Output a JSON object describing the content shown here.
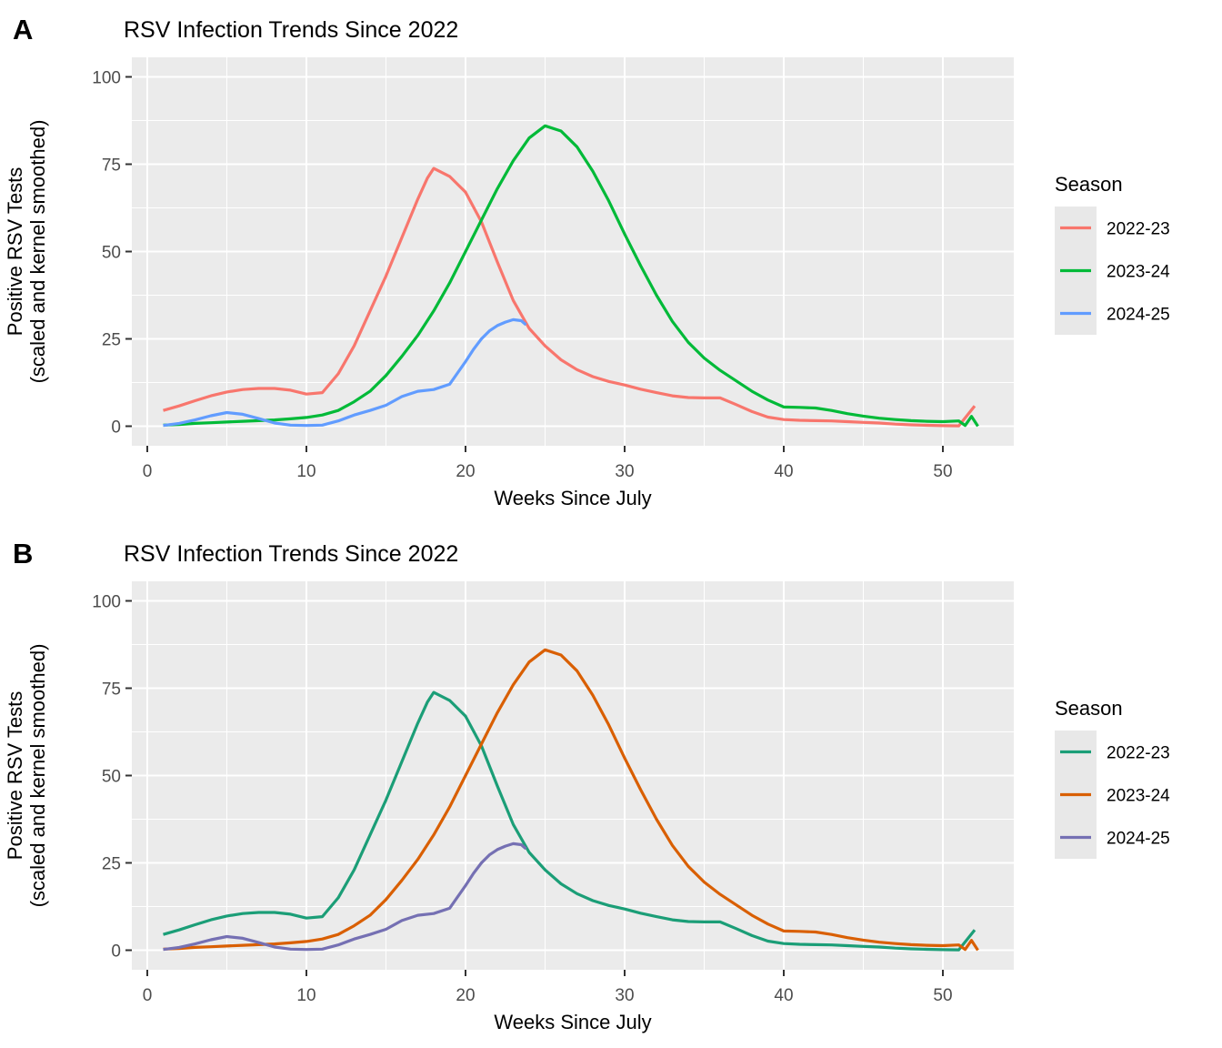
{
  "figure": {
    "background": "#ffffff",
    "panel_background": "#ebebeb",
    "grid_color": "#ffffff",
    "tick_color": "#333333",
    "tick_label_color": "#4d4d4d",
    "panel_labels": [
      "A",
      "B"
    ]
  },
  "chart_data": [
    {
      "type": "line",
      "panel": "A",
      "title": "RSV Infection Trends Since 2022",
      "xlabel": "Weeks Since July",
      "ylabel_line1": "Positive RSV Tests",
      "ylabel_line2": "(scaled and kernel smoothed)",
      "xticks": [
        0,
        10,
        20,
        30,
        40,
        50
      ],
      "yticks": [
        0,
        25,
        50,
        75,
        100
      ],
      "xticks_minor": [
        5,
        15,
        25,
        35,
        45
      ],
      "yticks_minor": [
        12.5,
        37.5,
        62.5,
        87.5
      ],
      "xlim": [
        -1,
        54.5
      ],
      "ylim": [
        -5.6,
        105.6
      ],
      "grid": true,
      "legend_title": "Season",
      "legend_position": "right",
      "series": [
        {
          "name": "2022-23",
          "color": "#F8766D",
          "x": [
            1,
            2,
            3,
            4,
            5,
            6,
            7,
            8,
            9,
            10,
            11,
            12,
            13,
            14,
            15,
            16,
            17,
            17.6,
            18,
            19,
            20,
            21,
            22,
            23,
            24,
            25,
            26,
            27,
            28,
            29,
            30,
            31,
            32,
            33,
            34,
            35,
            36,
            37,
            38,
            39,
            40,
            41,
            42,
            43,
            44,
            45,
            46,
            47,
            48,
            49,
            50,
            51,
            52
          ],
          "y": [
            4.5,
            5.8,
            7.3,
            8.7,
            9.8,
            10.5,
            10.8,
            10.8,
            10.3,
            9.2,
            9.6,
            15,
            23,
            33,
            43,
            54,
            65,
            71,
            73.8,
            71.5,
            67,
            58.5,
            47,
            36,
            28,
            23,
            19,
            16.2,
            14.2,
            12.8,
            11.8,
            10.6,
            9.6,
            8.7,
            8.2,
            8.1,
            8.1,
            6.2,
            4.2,
            2.6,
            1.9,
            1.7,
            1.6,
            1.5,
            1.3,
            1.1,
            0.9,
            0.6,
            0.4,
            0.25,
            0.15,
            0.1,
            5.8
          ]
        },
        {
          "name": "2023-24",
          "color": "#00BA38",
          "x": [
            1,
            2,
            3,
            4,
            5,
            6,
            7,
            8,
            9,
            10,
            11,
            12,
            13,
            14,
            15,
            16,
            17,
            18,
            19,
            20,
            21,
            22,
            23,
            24,
            25,
            26,
            27,
            28,
            29,
            30,
            31,
            32,
            33,
            34,
            35,
            36,
            37,
            38,
            39,
            40,
            41,
            42,
            43,
            44,
            45,
            46,
            47,
            48,
            49,
            50,
            51,
            51.4,
            51.8,
            52.2
          ],
          "y": [
            0.3,
            0.5,
            0.8,
            1,
            1.2,
            1.4,
            1.6,
            1.8,
            2.1,
            2.5,
            3.2,
            4.5,
            7,
            10,
            14.5,
            20,
            26,
            33,
            41,
            50,
            59,
            68,
            76,
            82.5,
            86,
            84.5,
            80,
            73,
            64.5,
            55,
            46,
            37.5,
            30,
            24,
            19.5,
            16,
            13,
            10,
            7.5,
            5.5,
            5.4,
            5.2,
            4.5,
            3.6,
            2.9,
            2.3,
            1.9,
            1.6,
            1.4,
            1.3,
            1.5,
            0.2,
            2.8,
            0
          ]
        },
        {
          "name": "2024-25",
          "color": "#619CFF",
          "x": [
            1,
            2,
            3,
            4,
            5,
            6,
            7,
            8,
            9,
            10,
            11,
            12,
            13,
            14,
            15,
            16,
            17,
            18,
            19,
            20,
            20.5,
            21,
            21.5,
            22,
            22.5,
            23,
            23.5,
            23.8
          ],
          "y": [
            0.2,
            0.8,
            1.8,
            3,
            3.9,
            3.4,
            2.2,
            0.9,
            0.3,
            0.2,
            0.3,
            1.5,
            3.2,
            4.5,
            6,
            8.5,
            10,
            10.5,
            12,
            18.5,
            22,
            25,
            27.3,
            28.8,
            29.8,
            30.5,
            30.2,
            29
          ]
        }
      ]
    },
    {
      "type": "line",
      "panel": "B",
      "title": "RSV Infection Trends Since 2022",
      "xlabel": "Weeks Since July",
      "ylabel_line1": "Positive RSV Tests",
      "ylabel_line2": "(scaled and kernel smoothed)",
      "xticks": [
        0,
        10,
        20,
        30,
        40,
        50
      ],
      "yticks": [
        0,
        25,
        50,
        75,
        100
      ],
      "xticks_minor": [
        5,
        15,
        25,
        35,
        45
      ],
      "yticks_minor": [
        12.5,
        37.5,
        62.5,
        87.5
      ],
      "xlim": [
        -1,
        54.5
      ],
      "ylim": [
        -5.6,
        105.6
      ],
      "grid": true,
      "legend_title": "Season",
      "legend_position": "right",
      "series": [
        {
          "name": "2022-23",
          "color": "#1B9E77",
          "x": [
            1,
            2,
            3,
            4,
            5,
            6,
            7,
            8,
            9,
            10,
            11,
            12,
            13,
            14,
            15,
            16,
            17,
            17.6,
            18,
            19,
            20,
            21,
            22,
            23,
            24,
            25,
            26,
            27,
            28,
            29,
            30,
            31,
            32,
            33,
            34,
            35,
            36,
            37,
            38,
            39,
            40,
            41,
            42,
            43,
            44,
            45,
            46,
            47,
            48,
            49,
            50,
            51,
            52
          ],
          "y": [
            4.5,
            5.8,
            7.3,
            8.7,
            9.8,
            10.5,
            10.8,
            10.8,
            10.3,
            9.2,
            9.6,
            15,
            23,
            33,
            43,
            54,
            65,
            71,
            73.8,
            71.5,
            67,
            58.5,
            47,
            36,
            28,
            23,
            19,
            16.2,
            14.2,
            12.8,
            11.8,
            10.6,
            9.6,
            8.7,
            8.2,
            8.1,
            8.1,
            6.2,
            4.2,
            2.6,
            1.9,
            1.7,
            1.6,
            1.5,
            1.3,
            1.1,
            0.9,
            0.6,
            0.4,
            0.25,
            0.15,
            0.1,
            5.8
          ]
        },
        {
          "name": "2023-24",
          "color": "#D95F02",
          "x": [
            1,
            2,
            3,
            4,
            5,
            6,
            7,
            8,
            9,
            10,
            11,
            12,
            13,
            14,
            15,
            16,
            17,
            18,
            19,
            20,
            21,
            22,
            23,
            24,
            25,
            26,
            27,
            28,
            29,
            30,
            31,
            32,
            33,
            34,
            35,
            36,
            37,
            38,
            39,
            40,
            41,
            42,
            43,
            44,
            45,
            46,
            47,
            48,
            49,
            50,
            51,
            51.4,
            51.8,
            52.2
          ],
          "y": [
            0.3,
            0.5,
            0.8,
            1,
            1.2,
            1.4,
            1.6,
            1.8,
            2.1,
            2.5,
            3.2,
            4.5,
            7,
            10,
            14.5,
            20,
            26,
            33,
            41,
            50,
            59,
            68,
            76,
            82.5,
            86,
            84.5,
            80,
            73,
            64.5,
            55,
            46,
            37.5,
            30,
            24,
            19.5,
            16,
            13,
            10,
            7.5,
            5.5,
            5.4,
            5.2,
            4.5,
            3.6,
            2.9,
            2.3,
            1.9,
            1.6,
            1.4,
            1.3,
            1.5,
            0.2,
            2.8,
            0
          ]
        },
        {
          "name": "2024-25",
          "color": "#7570B3",
          "x": [
            1,
            2,
            3,
            4,
            5,
            6,
            7,
            8,
            9,
            10,
            11,
            12,
            13,
            14,
            15,
            16,
            17,
            18,
            19,
            20,
            20.5,
            21,
            21.5,
            22,
            22.5,
            23,
            23.5,
            23.8
          ],
          "y": [
            0.2,
            0.8,
            1.8,
            3,
            3.9,
            3.4,
            2.2,
            0.9,
            0.3,
            0.2,
            0.3,
            1.5,
            3.2,
            4.5,
            6,
            8.5,
            10,
            10.5,
            12,
            18.5,
            22,
            25,
            27.3,
            28.8,
            29.8,
            30.5,
            30.2,
            29
          ]
        }
      ]
    }
  ]
}
